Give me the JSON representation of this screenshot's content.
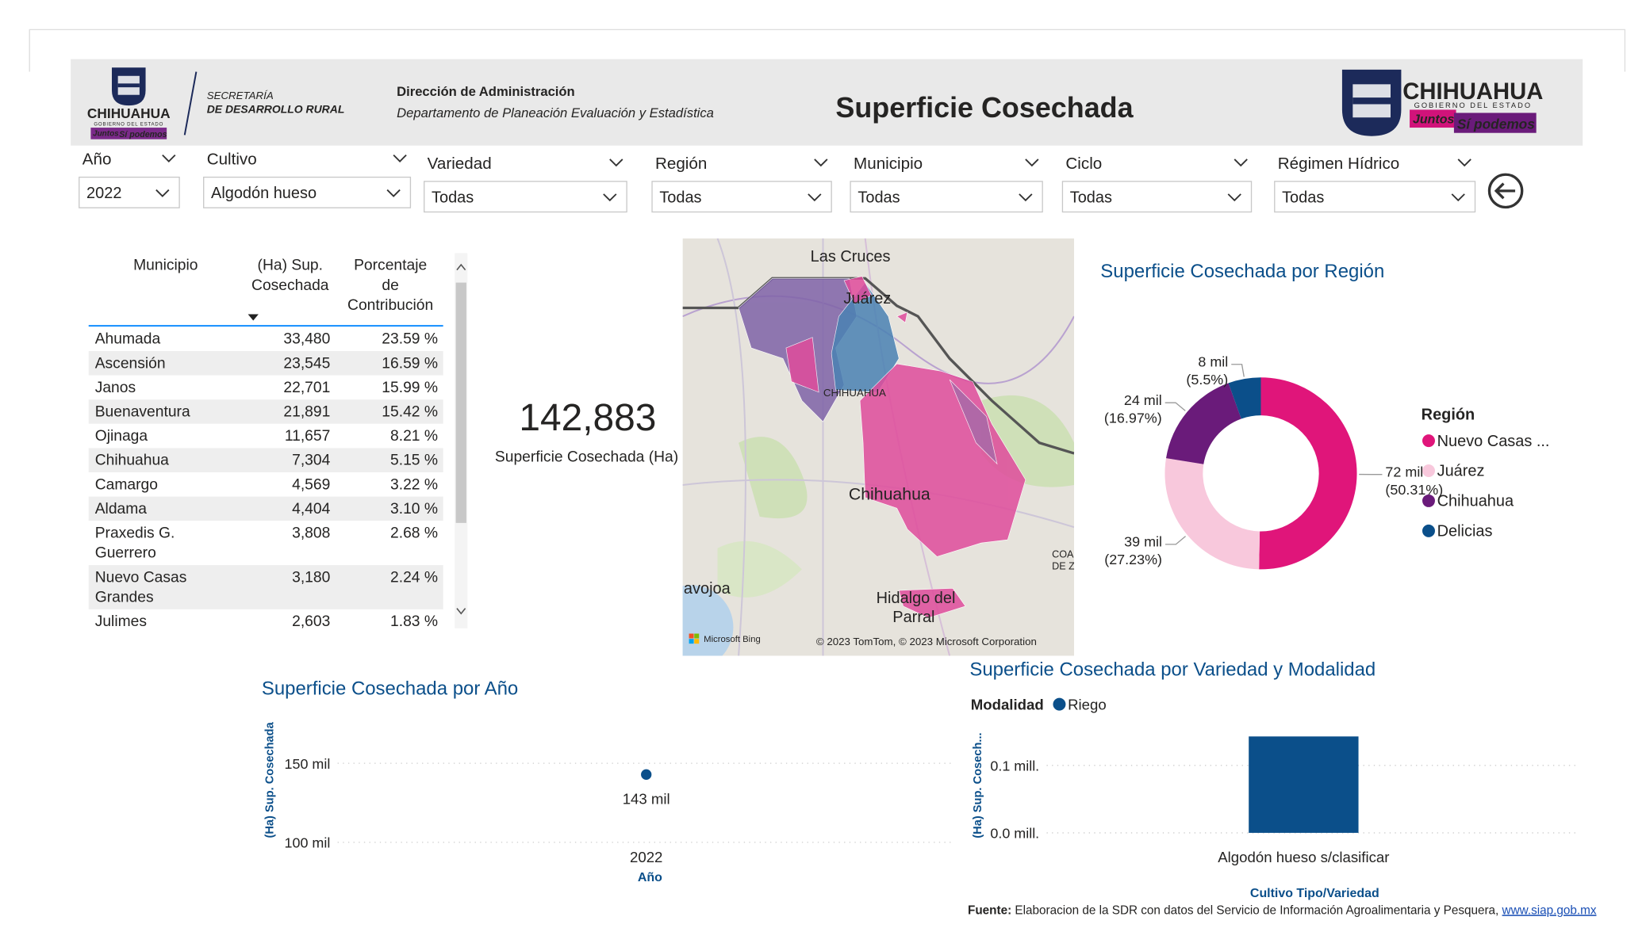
{
  "header": {
    "logo_left": {
      "name": "CHIHUAHUA",
      "subtitle": "GOBIERNO DEL ESTADO",
      "slogan_1": "Juntos",
      "slogan_2": "Sí podemos"
    },
    "secretaria": [
      "SECRETARÍA",
      "DE DESARROLLO RURAL"
    ],
    "direccion": "Dirección de Administración",
    "departamento": "Departamento de Planeación Evaluación y Estadística",
    "title": "Superficie Cosechada",
    "logo_right": {
      "name": "CHIHUAHUA",
      "subtitle": "GOBIERNO DEL ESTADO",
      "slogan_1": "Juntos",
      "slogan_2": "Sí podemos"
    }
  },
  "filters": [
    {
      "label": "Año",
      "value": "2022"
    },
    {
      "label": "Cultivo",
      "value": "Algodón hueso"
    },
    {
      "label": "Variedad",
      "value": "Todas"
    },
    {
      "label": "Región",
      "value": "Todas"
    },
    {
      "label": "Municipio",
      "value": "Todas"
    },
    {
      "label": "Ciclo",
      "value": "Todas"
    },
    {
      "label": "Régimen Hídrico",
      "value": "Todas"
    }
  ],
  "table": {
    "columns": [
      [
        "Municipio"
      ],
      [
        "(Ha) Sup.",
        "Cosechada"
      ],
      [
        "Porcentaje",
        "de",
        "Contribución"
      ]
    ],
    "rows": [
      [
        [
          "Ahumada"
        ],
        "33,480",
        "23.59 %"
      ],
      [
        [
          "Ascensión"
        ],
        "23,545",
        "16.59 %"
      ],
      [
        [
          "Janos"
        ],
        "22,701",
        "15.99 %"
      ],
      [
        [
          "Buenaventura"
        ],
        "21,891",
        "15.42 %"
      ],
      [
        [
          "Ojinaga"
        ],
        "11,657",
        "8.21 %"
      ],
      [
        [
          "Chihuahua"
        ],
        "7,304",
        "5.15 %"
      ],
      [
        [
          "Camargo"
        ],
        "4,569",
        "3.22 %"
      ],
      [
        [
          "Aldama"
        ],
        "4,404",
        "3.10 %"
      ],
      [
        [
          "Praxedis G.",
          "Guerrero"
        ],
        "3,808",
        "2.68 %"
      ],
      [
        [
          "Nuevo Casas",
          "Grandes"
        ],
        "3,180",
        "2.24 %"
      ],
      [
        [
          "Julimes"
        ],
        "2,603",
        "1.83 %"
      ]
    ]
  },
  "kpi": {
    "value": "142,883",
    "label": "Superficie Cosechada (Ha)"
  },
  "map": {
    "las_cruces": "Las Cruces",
    "juarez": "Juárez",
    "state": "CHIHUAHUA",
    "city": "Chihuahua",
    "navojoa": "avojoa",
    "parral": [
      "Hidalgo del",
      "Parral"
    ],
    "coahuila": [
      "COA",
      "DE ZA"
    ],
    "bing": "Microsoft Bing",
    "copyright": "© 2023 TomTom, © 2023 Microsoft Corporation"
  },
  "chart_data": [
    {
      "type": "donut",
      "title": "Superficie Cosechada por Región",
      "legend_title": "Región",
      "categories": [
        "Nuevo Casas ...",
        "Juárez",
        "Chihuahua",
        "Delicias"
      ],
      "values": [
        71884,
        38907,
        24247,
        7845
      ],
      "value_labels": [
        "72 mil",
        "39 mil",
        "24 mil",
        "8 mil"
      ],
      "percent_labels": [
        "(50.31%)",
        "(27.23%)",
        "(16.97%)",
        "(5.5%)"
      ],
      "colors": [
        "#e0157a",
        "#f8c8dc",
        "#6a1b7a",
        "#0b4f8a"
      ]
    },
    {
      "type": "dot",
      "title": "Superficie Cosechada por Año",
      "x_label": "Año",
      "y_label": "(Ha) Sup. Cosechada",
      "categories": [
        "2022"
      ],
      "values": [
        142883
      ],
      "value_labels": [
        "143 mil"
      ],
      "color": "#0b4f8a",
      "ylim": [
        100000,
        170000
      ],
      "yticks": [
        {
          "value": 100000,
          "label": "100 mil"
        },
        {
          "value": 150000,
          "label": "150 mil"
        }
      ]
    },
    {
      "type": "bar",
      "title": "Superficie Cosechada por Variedad y Modalidad",
      "legend_title": "Modalidad",
      "x_label": "Cultivo Tipo/Variedad",
      "y_label": "(Ha) Sup. Cosech...",
      "categories": [
        "Algodón hueso s/clasificar"
      ],
      "series": [
        {
          "name": "Riego",
          "color": "#0b4f8a",
          "values": [
            142883
          ]
        }
      ],
      "ylim": [
        0,
        150000
      ],
      "yticks": [
        {
          "value": 0,
          "label": "0.0 mill."
        },
        {
          "value": 100000,
          "label": "0.1 mill."
        }
      ]
    }
  ],
  "footer": {
    "label": "Fuente:",
    "text": " Elaboracion de la SDR con datos del Servicio de Información Agroalimentaria y Pesquera, ",
    "link": "www.siap.gob.mx"
  }
}
